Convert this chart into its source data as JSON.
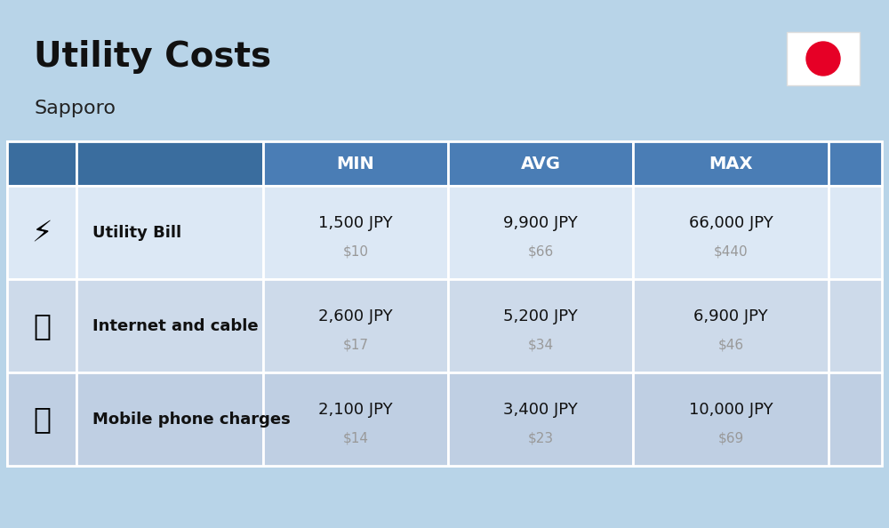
{
  "title": "Utility Costs",
  "subtitle": "Sapporo",
  "background_color": "#b8d4e8",
  "header_bg_color": "#4a7db5",
  "header_text_color": "#ffffff",
  "col_headers": [
    "MIN",
    "AVG",
    "MAX"
  ],
  "rows": [
    {
      "label": "Utility Bill",
      "min_jpy": "1,500 JPY",
      "min_usd": "$10",
      "avg_jpy": "9,900 JPY",
      "avg_usd": "$66",
      "max_jpy": "66,000 JPY",
      "max_usd": "$440"
    },
    {
      "label": "Internet and cable",
      "min_jpy": "2,600 JPY",
      "min_usd": "$17",
      "avg_jpy": "5,200 JPY",
      "avg_usd": "$34",
      "max_jpy": "6,900 JPY",
      "max_usd": "$46"
    },
    {
      "label": "Mobile phone charges",
      "min_jpy": "2,100 JPY",
      "min_usd": "$14",
      "avg_jpy": "3,400 JPY",
      "avg_usd": "$23",
      "max_jpy": "10,000 JPY",
      "max_usd": "$69"
    }
  ],
  "flag_circle_color": "#e60026",
  "flag_bg": "#ffffff",
  "title_fontsize": 28,
  "subtitle_fontsize": 16,
  "header_fontsize": 14,
  "label_fontsize": 13,
  "value_fontsize": 13,
  "usd_fontsize": 11,
  "usd_color": "#999999",
  "row_colors": [
    "#dce8f5",
    "#cddaea",
    "#bfcfe3"
  ]
}
